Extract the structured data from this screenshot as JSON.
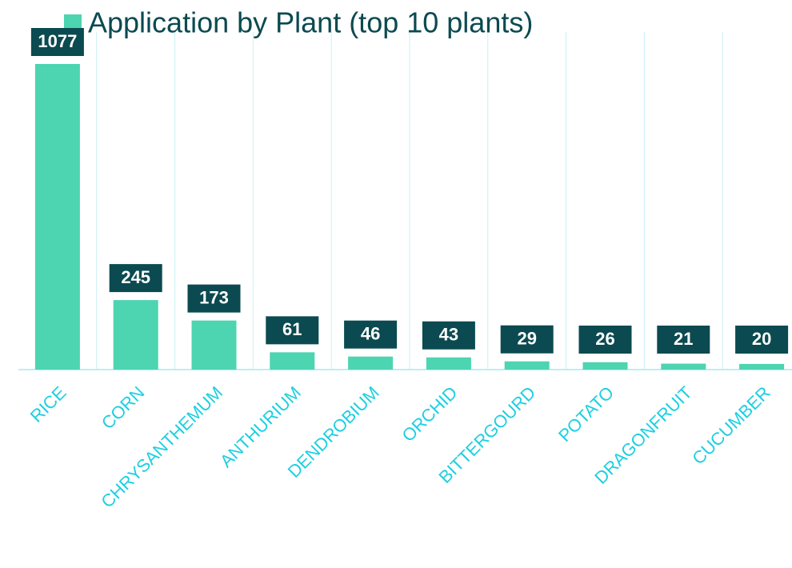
{
  "chart_data": {
    "type": "bar",
    "series": [
      {
        "name": "Application by Plant (top 10 plants)",
        "color": "#4dd4b0",
        "values": [
          1077,
          245,
          173,
          61,
          46,
          43,
          29,
          26,
          21,
          20
        ]
      }
    ],
    "categories": [
      "RICE",
      "CORN",
      "CHRYSANTHEMUM",
      "ANTHURIUM",
      "DENDROBIUM",
      "ORCHID",
      "BITTERGOURD",
      "POTATO",
      "DRAGONFRUIT",
      "CUCUMBER"
    ],
    "grid": true
  }
}
